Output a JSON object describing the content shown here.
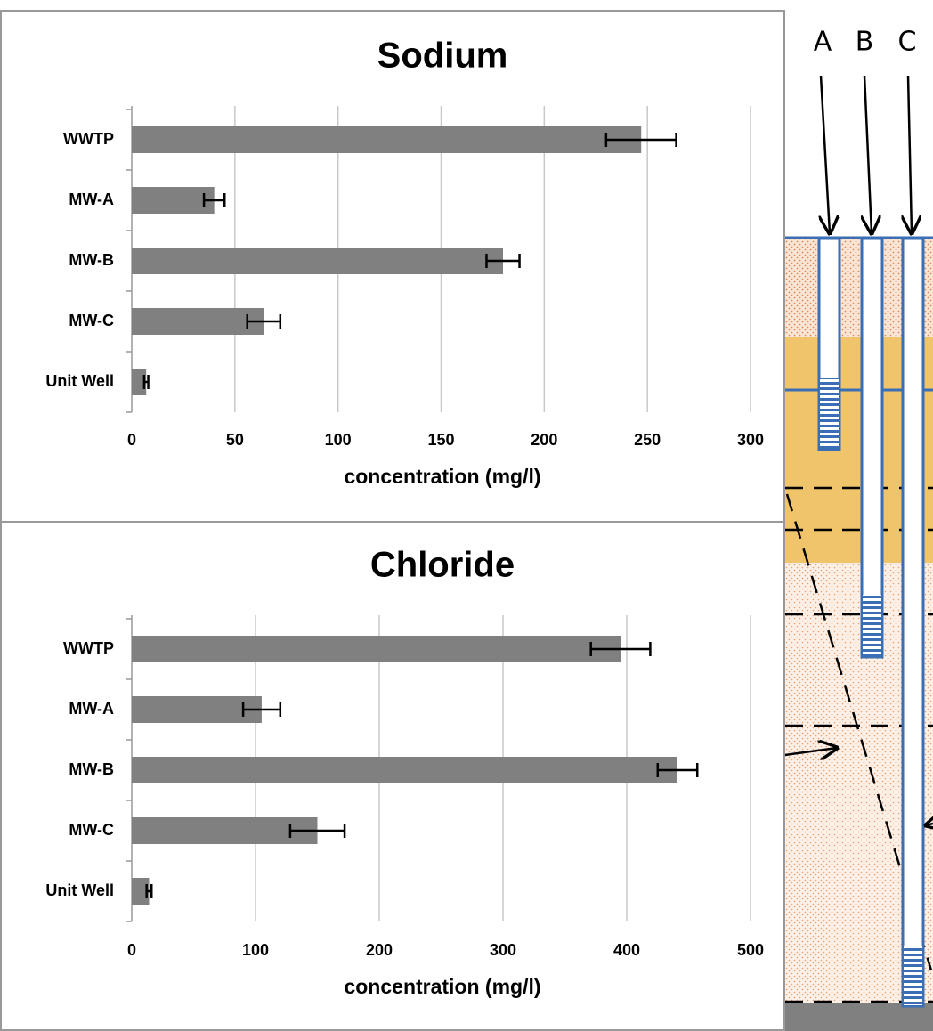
{
  "chart_data": [
    {
      "type": "bar",
      "title": "Sodium",
      "x_label": "concentration (mg/l)",
      "categories": [
        "WWTP",
        "MW-A",
        "MW-B",
        "MW-C",
        "Unit Well"
      ],
      "values": [
        247,
        40,
        180,
        64,
        7
      ],
      "errors": [
        17,
        5,
        8,
        8,
        1
      ],
      "color": "#808080",
      "xlim": [
        0,
        300
      ],
      "xticks": [
        0,
        50,
        100,
        150,
        200,
        250,
        300
      ],
      "grid": true
    },
    {
      "type": "bar",
      "title": "Chloride",
      "x_label": "concentration (mg/l)",
      "categories": [
        "WWTP",
        "MW-A",
        "MW-B",
        "MW-C",
        "Unit Well"
      ],
      "values": [
        395,
        105,
        441,
        150,
        14
      ],
      "errors": [
        24,
        15,
        16,
        22,
        2
      ],
      "color": "#808080",
      "xlim": [
        0,
        500
      ],
      "xticks": [
        0,
        100,
        200,
        300,
        400,
        500
      ],
      "grid": true
    }
  ],
  "diagram": {
    "well_labels": [
      "A",
      "B",
      "C"
    ]
  }
}
